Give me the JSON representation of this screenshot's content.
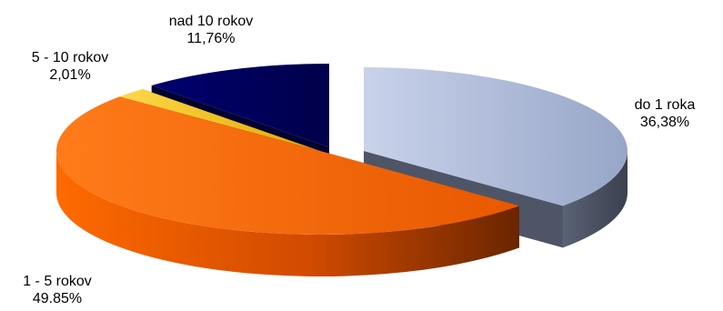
{
  "chart_data": {
    "type": "pie",
    "style": "3d-exploded",
    "slices": [
      {
        "key": "d1",
        "name": "do 1 roka",
        "value": 36.38,
        "value_label": "36,38%",
        "color": "#a8b6d6",
        "side_color": "#4e5566"
      },
      {
        "key": "d15",
        "name": "1 - 5 rokov",
        "value": 49.85,
        "value_label": "49.85%",
        "color": "#ff6a00",
        "side_color": "#7a2a00"
      },
      {
        "key": "d510",
        "name": "5 - 10 rokov",
        "value": 2.01,
        "value_label": "2,01%",
        "color": "#f5c518",
        "side_color": "#6b5200"
      },
      {
        "key": "d10",
        "name": "nad 10 rokov",
        "value": 11.76,
        "value_label": "11,76%",
        "color": "#000066",
        "side_color": "#000033"
      }
    ],
    "legend": "none"
  }
}
